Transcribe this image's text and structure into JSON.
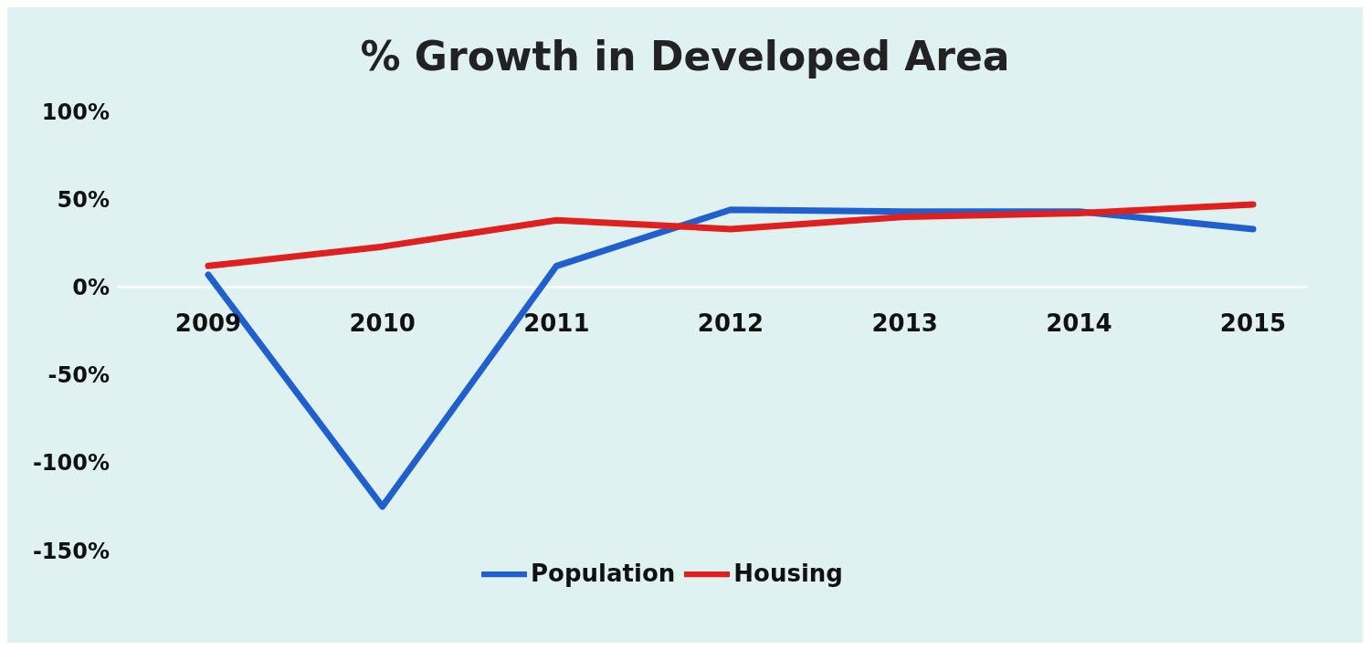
{
  "chart_data": {
    "type": "line",
    "title": "% Growth in Developed Area",
    "categories": [
      "2009",
      "2010",
      "2011",
      "2012",
      "2013",
      "2014",
      "2015"
    ],
    "series": [
      {
        "name": "Population",
        "color": "#1f5fd0",
        "values": [
          7,
          -125,
          12,
          44,
          43,
          43,
          33
        ]
      },
      {
        "name": "Housing",
        "color": "#e0201e",
        "values": [
          12,
          23,
          38,
          33,
          40,
          42,
          47
        ]
      }
    ],
    "ylim": [
      -150,
      100
    ],
    "yticks": [
      {
        "value": -150,
        "label": "-150%"
      },
      {
        "value": -100,
        "label": "-100%"
      },
      {
        "value": -50,
        "label": "-50%"
      },
      {
        "value": 0,
        "label": "0%"
      },
      {
        "value": 50,
        "label": "50%"
      },
      {
        "value": 100,
        "label": "100%"
      }
    ],
    "grid": false,
    "legend": "bottom",
    "marker": "none",
    "line_style": "solid"
  }
}
